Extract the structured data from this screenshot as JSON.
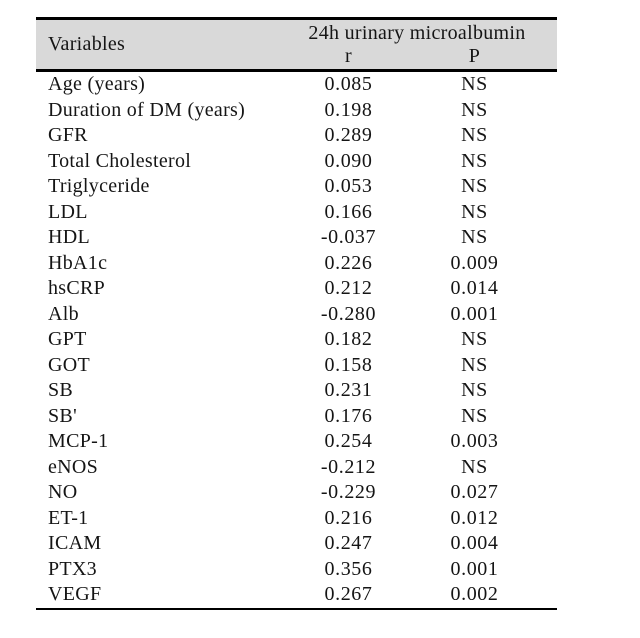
{
  "table": {
    "header": {
      "variables_label": "Variables",
      "span_label": "24h urinary microalbumin",
      "r_label": "r",
      "p_label": "P"
    },
    "rows": [
      {
        "variable": "Age (years)",
        "r": "0.085",
        "p": "NS"
      },
      {
        "variable": "Duration of DM (years)",
        "r": "0.198",
        "p": "NS"
      },
      {
        "variable": "GFR",
        "r": "0.289",
        "p": "NS"
      },
      {
        "variable": "Total Cholesterol",
        "r": "0.090",
        "p": "NS"
      },
      {
        "variable": "Triglyceride",
        "r": "0.053",
        "p": "NS"
      },
      {
        "variable": "LDL",
        "r": "0.166",
        "p": "NS"
      },
      {
        "variable": "HDL",
        "r": "-0.037",
        "p": "NS"
      },
      {
        "variable": "HbA1c",
        "r": "0.226",
        "p": "0.009"
      },
      {
        "variable": "hsCRP",
        "r": "0.212",
        "p": "0.014"
      },
      {
        "variable": "Alb",
        "r": "-0.280",
        "p": "0.001"
      },
      {
        "variable": "GPT",
        "r": "0.182",
        "p": "NS"
      },
      {
        "variable": "GOT",
        "r": "0.158",
        "p": "NS"
      },
      {
        "variable": "SB",
        "r": "0.231",
        "p": "NS"
      },
      {
        "variable": "SB'",
        "r": "0.176",
        "p": "NS"
      },
      {
        "variable": "MCP-1",
        "r": "0.254",
        "p": "0.003"
      },
      {
        "variable": "eNOS",
        "r": "-0.212",
        "p": "NS"
      },
      {
        "variable": "NO",
        "r": "-0.229",
        "p": "0.027"
      },
      {
        "variable": "ET-1",
        "r": "0.216",
        "p": "0.012"
      },
      {
        "variable": "ICAM",
        "r": "0.247",
        "p": "0.004"
      },
      {
        "variable": "PTX3",
        "r": "0.356",
        "p": "0.001"
      },
      {
        "variable": "VEGF",
        "r": "0.267",
        "p": "0.002"
      }
    ]
  },
  "colors": {
    "header_background": "#d9d9d9",
    "border": "#000000",
    "text": "#151515",
    "page_background": "#ffffff"
  }
}
